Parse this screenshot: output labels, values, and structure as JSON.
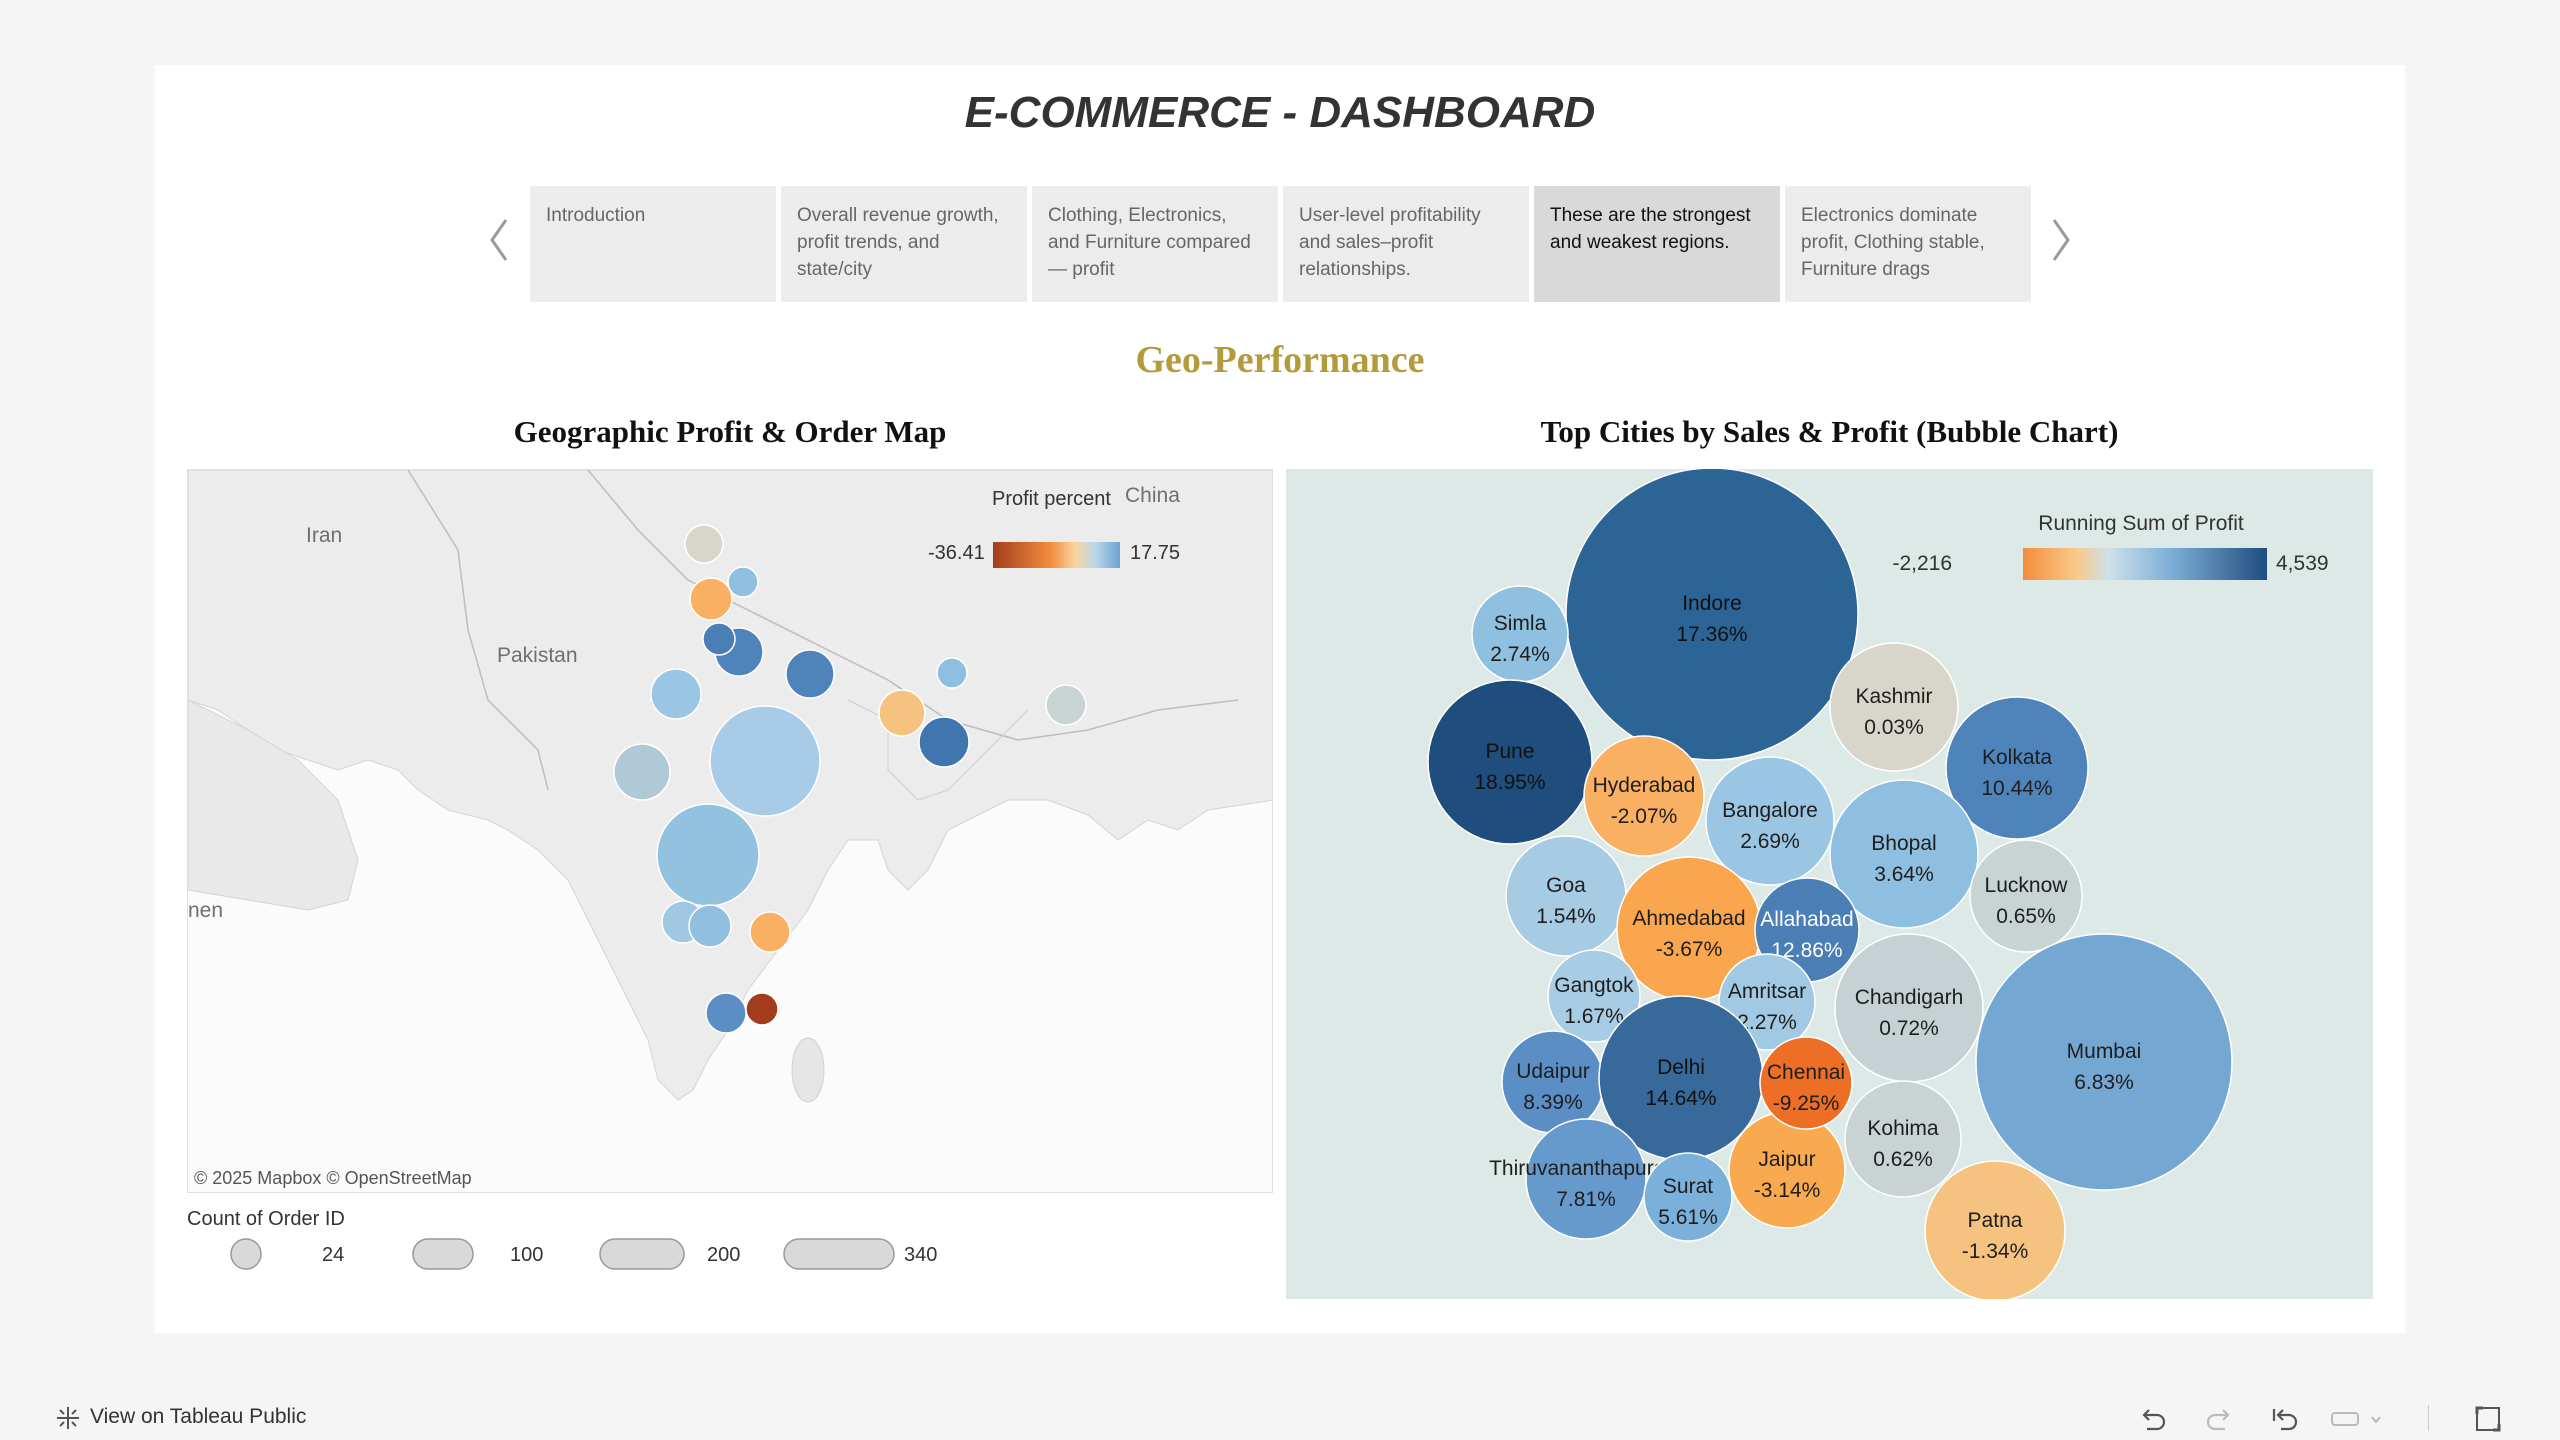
{
  "dashboard": {
    "title": "E-COMMERCE - DASHBOARD",
    "section_title": "Geo-Performance"
  },
  "story_points": [
    {
      "label": "Introduction",
      "active": false
    },
    {
      "label": "Overall revenue growth, profit trends, and state/city",
      "active": false
    },
    {
      "label": "Clothing, Electronics, and Furniture compared — profit",
      "active": false
    },
    {
      "label": "User-level profitability and sales–profit relationships.",
      "active": false
    },
    {
      "label": "These are the strongest and weakest regions.",
      "active": true
    },
    {
      "label": "Electronics dominate profit, Clothing stable, Furniture drags",
      "active": false
    }
  ],
  "map_panel": {
    "title": "Geographic Profit & Order Map",
    "attribution": "© 2025 Mapbox  © OpenStreetMap",
    "place_labels": [
      "Iran",
      "Pakistan",
      "China",
      "nen"
    ],
    "color_legend": {
      "title": "Profit percent",
      "min": "-36.41",
      "max": "17.75"
    },
    "size_legend": {
      "title": "Count of Order ID",
      "values": [
        "24",
        "100",
        "200",
        "340"
      ]
    }
  },
  "bubble_panel": {
    "title": "Top Cities by Sales & Profit (Bubble Chart)",
    "color_legend": {
      "title": "Running Sum of Profit",
      "min": "-2,216",
      "max": "4,539"
    }
  },
  "chart_data": {
    "type": "bubble",
    "title": "Top Cities by Sales & Profit (Bubble Chart)",
    "color_measure": "Running Sum of Profit",
    "color_range": [
      -2216,
      4539
    ],
    "cities": [
      {
        "name": "Indore",
        "profit_pct": "17.36%",
        "color": "#2d6496"
      },
      {
        "name": "Simla",
        "profit_pct": "2.74%",
        "color": "#8fc0df"
      },
      {
        "name": "Kashmir",
        "profit_pct": "0.03%",
        "color": "#d8d5cb"
      },
      {
        "name": "Pune",
        "profit_pct": "18.95%",
        "color": "#1f4d7e"
      },
      {
        "name": "Kolkata",
        "profit_pct": "10.44%",
        "color": "#4f84ba"
      },
      {
        "name": "Hyderabad",
        "profit_pct": "-2.07%",
        "color": "#f9b062"
      },
      {
        "name": "Bangalore",
        "profit_pct": "2.69%",
        "color": "#9ac6e3"
      },
      {
        "name": "Bhopal",
        "profit_pct": "3.64%",
        "color": "#8fbfe0"
      },
      {
        "name": "Goa",
        "profit_pct": "1.54%",
        "color": "#a6cbe2"
      },
      {
        "name": "Lucknow",
        "profit_pct": "0.65%",
        "color": "#c8d3d3"
      },
      {
        "name": "Ahmedabad",
        "profit_pct": "-3.67%",
        "color": "#f9a64e"
      },
      {
        "name": "Allahabad",
        "profit_pct": "12.86%",
        "color": "#4a7eb4"
      },
      {
        "name": "Gangtok",
        "profit_pct": "1.67%",
        "color": "#a8cce3"
      },
      {
        "name": "Amritsar",
        "profit_pct": "2.27%",
        "color": "#a1c9e3"
      },
      {
        "name": "Chandigarh",
        "profit_pct": "0.72%",
        "color": "#c5d1d2"
      },
      {
        "name": "Mumbai",
        "profit_pct": "6.83%",
        "color": "#74a8d3"
      },
      {
        "name": "Udaipur",
        "profit_pct": "8.39%",
        "color": "#5b8ec4"
      },
      {
        "name": "Delhi",
        "profit_pct": "14.64%",
        "color": "#37699b"
      },
      {
        "name": "Chennai",
        "profit_pct": "-9.25%",
        "color": "#ec6f25"
      },
      {
        "name": "Kohima",
        "profit_pct": "0.62%",
        "color": "#c9d3d3"
      },
      {
        "name": "Thiruvananthapuram",
        "profit_pct": "7.81%",
        "color": "#6699cc"
      },
      {
        "name": "Jaipur",
        "profit_pct": "-3.14%",
        "color": "#f9a94f"
      },
      {
        "name": "Surat",
        "profit_pct": "5.61%",
        "color": "#7ab0d9"
      },
      {
        "name": "Patna",
        "profit_pct": "-1.34%",
        "color": "#f6c27f"
      }
    ]
  },
  "map_markers": [
    {
      "color": "#d8d5cb"
    },
    {
      "color": "#f9b062"
    },
    {
      "color": "#8fc0df"
    },
    {
      "color": "#4f84ba"
    },
    {
      "color": "#4a7eb4"
    },
    {
      "color": "#9ac6e3"
    },
    {
      "color": "#8fbfe0"
    },
    {
      "color": "#f6c27f"
    },
    {
      "color": "#aecde4"
    },
    {
      "color": "#c8d3d3"
    },
    {
      "color": "#b0c9d6"
    },
    {
      "color": "#a8cce8"
    },
    {
      "color": "#3f76ae"
    },
    {
      "color": "#93c1e0"
    },
    {
      "color": "#a0c8e3"
    },
    {
      "color": "#90bfe0"
    },
    {
      "color": "#f9b062"
    },
    {
      "color": "#5a8ec4"
    },
    {
      "color": "#a23c1c"
    }
  ],
  "footer": {
    "view_on_public": "View on Tableau Public"
  }
}
